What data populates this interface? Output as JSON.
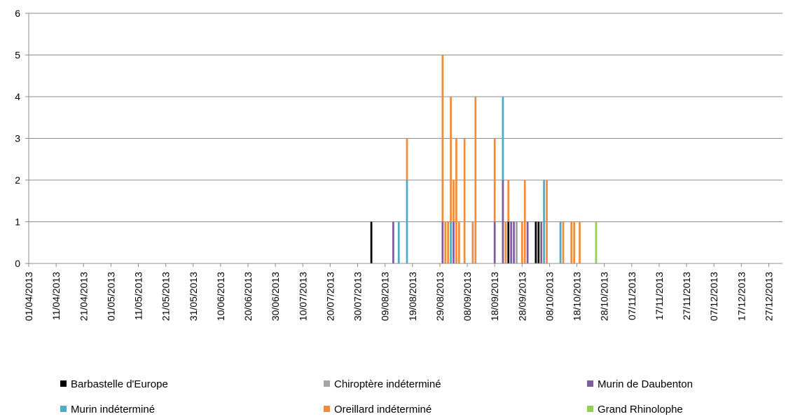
{
  "chart_data": {
    "type": "bar",
    "stacked": true,
    "title": "",
    "xlabel": "",
    "ylabel": "",
    "ylim": [
      0,
      6
    ],
    "yticks": [
      0,
      1,
      2,
      3,
      4,
      5,
      6
    ],
    "grid": true,
    "legend_position": "bottom",
    "x_range": [
      "01/04/2013",
      "01/01/2014"
    ],
    "x_tick_labels": [
      "01/04/2013",
      "11/04/2013",
      "21/04/2013",
      "01/05/2013",
      "11/05/2013",
      "21/05/2013",
      "31/05/2013",
      "10/06/2013",
      "20/06/2013",
      "30/06/2013",
      "10/07/2013",
      "20/07/2013",
      "30/07/2013",
      "09/08/2013",
      "19/08/2013",
      "29/08/2013",
      "08/09/2013",
      "18/09/2013",
      "28/09/2013",
      "08/10/2013",
      "18/10/2013",
      "28/10/2013",
      "07/11/2013",
      "17/11/2013",
      "27/11/2013",
      "07/12/2013",
      "17/12/2013",
      "27/12/2013"
    ],
    "series": [
      {
        "name": "Barbastelle d'Europe",
        "color": "#000000",
        "points": [
          [
            "04/08/2013",
            1
          ],
          [
            "23/09/2013",
            1
          ],
          [
            "03/10/2013",
            1
          ],
          [
            "04/10/2013",
            1
          ]
        ]
      },
      {
        "name": "Chiroptère indéterminé",
        "color": "#a5a5a5",
        "points": [
          [
            "26/09/2013",
            1
          ]
        ]
      },
      {
        "name": "Murin de Daubenton",
        "color": "#7d5d9e",
        "points": [
          [
            "12/08/2013",
            1
          ],
          [
            "30/08/2013",
            1
          ],
          [
            "03/09/2013",
            1
          ],
          [
            "18/09/2013",
            1
          ],
          [
            "21/09/2013",
            2
          ],
          [
            "24/09/2013",
            1
          ],
          [
            "25/09/2013",
            1
          ],
          [
            "30/09/2013",
            1
          ],
          [
            "05/10/2013",
            1
          ]
        ]
      },
      {
        "name": "Murin indéterminé",
        "color": "#4bacc6",
        "points": [
          [
            "14/08/2013",
            1
          ],
          [
            "17/08/2013",
            2
          ],
          [
            "02/09/2013",
            1
          ],
          [
            "21/09/2013",
            2
          ],
          [
            "06/10/2013",
            2
          ],
          [
            "12/10/2013",
            1
          ]
        ]
      },
      {
        "name": "Oreillard indéterminé",
        "color": "#f08c3c",
        "points": [
          [
            "17/08/2013",
            1
          ],
          [
            "30/08/2013",
            4
          ],
          [
            "31/08/2013",
            1
          ],
          [
            "01/09/2013",
            1
          ],
          [
            "02/09/2013",
            3
          ],
          [
            "03/09/2013",
            1
          ],
          [
            "04/09/2013",
            3
          ],
          [
            "05/09/2013",
            1
          ],
          [
            "07/09/2013",
            3
          ],
          [
            "10/09/2013",
            1
          ],
          [
            "11/09/2013",
            4
          ],
          [
            "18/09/2013",
            2
          ],
          [
            "22/09/2013",
            1
          ],
          [
            "23/09/2013",
            1
          ],
          [
            "28/09/2013",
            1
          ],
          [
            "29/09/2013",
            2
          ],
          [
            "07/10/2013",
            2
          ],
          [
            "13/10/2013",
            1
          ],
          [
            "16/10/2013",
            1
          ],
          [
            "17/10/2013",
            1
          ],
          [
            "19/10/2013",
            1
          ]
        ]
      },
      {
        "name": "Grand Rhinolophe",
        "color": "#92d050",
        "points": [
          [
            "25/10/2013",
            1
          ]
        ]
      }
    ]
  }
}
